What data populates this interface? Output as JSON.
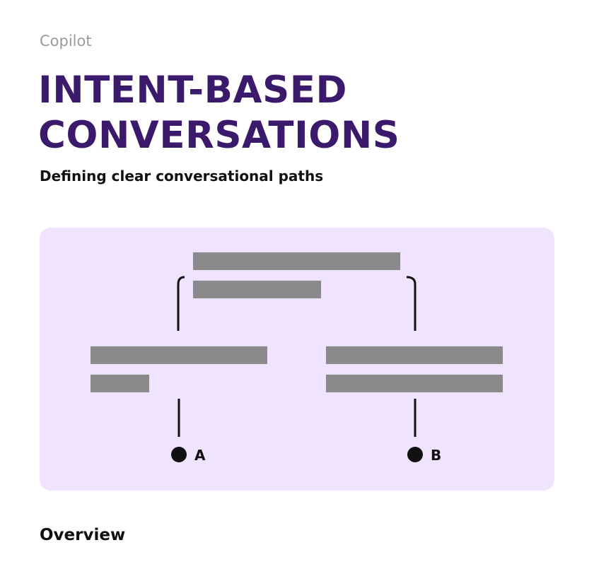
{
  "header": {
    "eyebrow": "Copilot",
    "title_lines": [
      "INTENT-BASED",
      "CONVERSATIONS"
    ],
    "subtitle": "Defining clear conversational paths"
  },
  "diagram": {
    "background_color": "#efe3fd",
    "placeholder_color": "#8a8a8a",
    "line_color": "#111111",
    "path_a_label": "A",
    "path_b_label": "B"
  },
  "section": {
    "heading": "Overview"
  }
}
